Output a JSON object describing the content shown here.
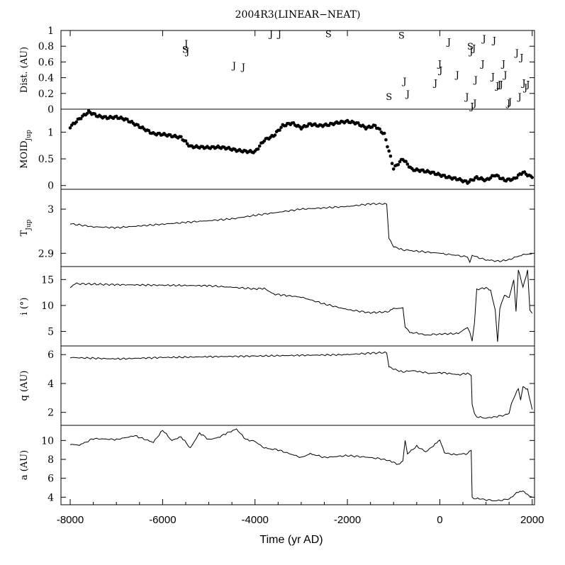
{
  "chart_data": {
    "type": "line",
    "title": "2004R3(LINEAR−NEAT)",
    "xlabel": "Time (yr AD)",
    "xlim": [
      -8200,
      2050
    ],
    "xticks": [
      -8000,
      -6000,
      -4000,
      -2000,
      0,
      2000
    ],
    "xtick_labels": [
      "-8000",
      "-6000",
      "-4000",
      "-2000",
      "0",
      "2000"
    ],
    "panels": [
      {
        "id": "dist",
        "ylabel": "Dist. (AU)",
        "ylim": [
          0,
          1
        ],
        "yticks": [
          0,
          0.2,
          0.4,
          0.6,
          0.8,
          1
        ],
        "ytick_labels": [
          "0",
          "0.2",
          "0.4",
          "0.6",
          "0.8",
          "1"
        ],
        "style": "letters",
        "series": [
          {
            "name": "encounters",
            "points": [
              {
                "x": -5490,
                "y": 0.84,
                "label": "J"
              },
              {
                "x": -5510,
                "y": 0.76,
                "label": "S"
              },
              {
                "x": -5460,
                "y": 0.74,
                "label": "J"
              },
              {
                "x": -4450,
                "y": 0.56,
                "label": "J"
              },
              {
                "x": -4250,
                "y": 0.54,
                "label": "J"
              },
              {
                "x": -3650,
                "y": 0.96,
                "label": "J"
              },
              {
                "x": -3470,
                "y": 0.96,
                "label": "J"
              },
              {
                "x": -2410,
                "y": 0.96,
                "label": "S"
              },
              {
                "x": -1100,
                "y": 0.16,
                "label": "S"
              },
              {
                "x": -830,
                "y": 0.94,
                "label": "S"
              },
              {
                "x": -760,
                "y": 0.36,
                "label": "J"
              },
              {
                "x": -690,
                "y": 0.2,
                "label": "J"
              },
              {
                "x": -90,
                "y": 0.34,
                "label": "J"
              },
              {
                "x": 0,
                "y": 0.58,
                "label": "J"
              },
              {
                "x": 20,
                "y": 0.5,
                "label": "J"
              },
              {
                "x": 200,
                "y": 0.86,
                "label": "J"
              },
              {
                "x": 380,
                "y": 0.44,
                "label": "J"
              },
              {
                "x": 590,
                "y": 0.16,
                "label": "J"
              },
              {
                "x": 660,
                "y": 0.8,
                "label": "S"
              },
              {
                "x": 680,
                "y": 0.74,
                "label": "J"
              },
              {
                "x": 700,
                "y": 0.04,
                "label": "J"
              },
              {
                "x": 740,
                "y": 0.78,
                "label": "J"
              },
              {
                "x": 760,
                "y": 0.08,
                "label": "J"
              },
              {
                "x": 780,
                "y": 0.38,
                "label": "J"
              },
              {
                "x": 930,
                "y": 0.58,
                "label": "J"
              },
              {
                "x": 960,
                "y": 0.9,
                "label": "J"
              },
              {
                "x": 1180,
                "y": 0.88,
                "label": "J"
              },
              {
                "x": 1150,
                "y": 0.42,
                "label": "J"
              },
              {
                "x": 1250,
                "y": 0.3,
                "label": "J"
              },
              {
                "x": 1290,
                "y": 0.32,
                "label": "J"
              },
              {
                "x": 1330,
                "y": 0.32,
                "label": "J"
              },
              {
                "x": 1380,
                "y": 0.58,
                "label": "J"
              },
              {
                "x": 1420,
                "y": 0.44,
                "label": "J"
              },
              {
                "x": 1490,
                "y": 0.08,
                "label": "J"
              },
              {
                "x": 1520,
                "y": 0.1,
                "label": "J"
              },
              {
                "x": 1670,
                "y": 0.72,
                "label": "J"
              },
              {
                "x": 1730,
                "y": 0.16,
                "label": "J"
              },
              {
                "x": 1770,
                "y": 0.66,
                "label": "J"
              },
              {
                "x": 1820,
                "y": 0.34,
                "label": "J"
              },
              {
                "x": 1860,
                "y": 0.28,
                "label": "J"
              },
              {
                "x": 1910,
                "y": 0.32,
                "label": "J"
              }
            ]
          }
        ]
      },
      {
        "id": "moid",
        "ylabel": "MOID",
        "ylabel_sub": "Jup",
        "ylim": [
          -0.07,
          1.43
        ],
        "yticks": [
          0,
          0.5,
          1
        ],
        "ytick_labels": [
          "0",
          "0.5",
          "1"
        ],
        "style": "dots",
        "series": [
          {
            "name": "MOID_Jup",
            "x": [
              -8000,
              -7800,
              -7600,
              -7400,
              -7200,
              -7000,
              -6800,
              -6600,
              -6400,
              -6200,
              -6000,
              -5800,
              -5600,
              -5400,
              -5200,
              -5000,
              -4800,
              -4600,
              -4400,
              -4200,
              -4000,
              -3800,
              -3600,
              -3400,
              -3200,
              -3000,
              -2800,
              -2600,
              -2400,
              -2200,
              -2000,
              -1800,
              -1600,
              -1400,
              -1200,
              -1000,
              -800,
              -600,
              -400,
              -200,
              0,
              200,
              400,
              600,
              800,
              1000,
              1200,
              1400,
              1600,
              1800,
              2000
            ],
            "y": [
              1.1,
              1.25,
              1.38,
              1.3,
              1.27,
              1.28,
              1.24,
              1.15,
              1.06,
              0.97,
              0.96,
              0.93,
              0.9,
              0.73,
              0.72,
              0.71,
              0.72,
              0.7,
              0.66,
              0.64,
              0.63,
              0.85,
              0.93,
              1.12,
              1.17,
              1.08,
              1.15,
              1.12,
              1.14,
              1.18,
              1.2,
              1.17,
              1.08,
              1.12,
              0.96,
              0.32,
              0.5,
              0.3,
              0.28,
              0.25,
              0.2,
              0.15,
              0.12,
              0.06,
              0.15,
              0.1,
              0.2,
              0.1,
              0.12,
              0.25,
              0.15
            ]
          }
        ]
      },
      {
        "id": "tjup",
        "ylabel": "T",
        "ylabel_sub": "Jup",
        "ylim": [
          2.87,
          3.045
        ],
        "yticks": [
          2.9,
          3
        ],
        "ytick_labels": [
          "2.9",
          "3"
        ],
        "style": "line",
        "series": [
          {
            "name": "T_Jup",
            "x": [
              -8000,
              -7500,
              -7000,
              -6500,
              -6000,
              -5500,
              -5000,
              -4500,
              -4000,
              -3500,
              -3000,
              -2500,
              -2000,
              -1500,
              -1150,
              -1100,
              -1000,
              -800,
              -500,
              0,
              300,
              600,
              650,
              700,
              1000,
              1300,
              1500,
              1800,
              2000
            ],
            "y": [
              2.967,
              2.96,
              2.958,
              2.962,
              2.966,
              2.97,
              2.974,
              2.978,
              2.986,
              2.993,
              3.0,
              3.003,
              3.006,
              3.012,
              3.012,
              2.935,
              2.915,
              2.908,
              2.905,
              2.9,
              2.896,
              2.892,
              2.88,
              2.895,
              2.885,
              2.882,
              2.886,
              2.897,
              2.899
            ]
          }
        ]
      },
      {
        "id": "incl",
        "ylabel": "i (°)",
        "ylim": [
          2.2,
          17.5
        ],
        "yticks": [
          5,
          10,
          15
        ],
        "ytick_labels": [
          "5",
          "10",
          "15"
        ],
        "style": "line",
        "series": [
          {
            "name": "i",
            "x": [
              -8000,
              -7900,
              -7000,
              -6000,
              -5000,
              -4500,
              -4000,
              -3800,
              -3600,
              -3000,
              -2500,
              -2000,
              -1500,
              -1100,
              -1000,
              -800,
              -750,
              -650,
              -500,
              -300,
              0,
              400,
              600,
              650,
              700,
              750,
              800,
              1000,
              1100,
              1200,
              1250,
              1300,
              1400,
              1500,
              1600,
              1650,
              1700,
              1800,
              1900,
              1950,
              2000
            ],
            "y": [
              13.5,
              14.2,
              14.0,
              13.9,
              13.8,
              13.5,
              13.2,
              13.3,
              12.2,
              11.6,
              10.3,
              9.2,
              8.6,
              8.8,
              9.4,
              9.5,
              5.8,
              4.8,
              4.7,
              4.3,
              4.5,
              4.6,
              5.8,
              4.8,
              3.0,
              6.5,
              13.1,
              13.4,
              12.8,
              9.0,
              3.0,
              9.5,
              12.0,
              11.5,
              15.0,
              9.0,
              17.0,
              13.6,
              16.8,
              9.0,
              8.5
            ]
          }
        ]
      },
      {
        "id": "q",
        "ylabel": "q (AU)",
        "ylim": [
          1.1,
          6.6
        ],
        "yticks": [
          2,
          4,
          6
        ],
        "ytick_labels": [
          "2",
          "4",
          "6"
        ],
        "style": "line",
        "series": [
          {
            "name": "q",
            "x": [
              -8000,
              -7000,
              -6000,
              -5000,
              -4000,
              -3000,
              -2000,
              -1500,
              -1150,
              -1100,
              -1000,
              -800,
              -600,
              -400,
              -200,
              0,
              200,
              400,
              600,
              680,
              700,
              750,
              800,
              1000,
              1200,
              1400,
              1500,
              1550,
              1600,
              1700,
              1750,
              1800,
              1900,
              2000
            ],
            "y": [
              5.8,
              5.7,
              5.8,
              5.85,
              5.9,
              5.95,
              6.0,
              6.1,
              6.15,
              5.2,
              5.0,
              4.8,
              4.9,
              4.8,
              4.7,
              4.75,
              4.7,
              4.6,
              4.7,
              4.55,
              2.5,
              1.9,
              1.7,
              1.6,
              1.7,
              1.8,
              1.9,
              2.6,
              3.0,
              3.7,
              2.9,
              3.8,
              3.6,
              2.2
            ]
          }
        ]
      },
      {
        "id": "a",
        "ylabel": "a (AU)",
        "ylim": [
          3.2,
          11.6
        ],
        "yticks": [
          4,
          6,
          8,
          10
        ],
        "ytick_labels": [
          "4",
          "6",
          "8",
          "10"
        ],
        "style": "line",
        "series": [
          {
            "name": "a",
            "x": [
              -8000,
              -7800,
              -7500,
              -7000,
              -6600,
              -6200,
              -6000,
              -5800,
              -5600,
              -5400,
              -5200,
              -5000,
              -4800,
              -4600,
              -4400,
              -4200,
              -4000,
              -3800,
              -3500,
              -3000,
              -2800,
              -2500,
              -2000,
              -1500,
              -1200,
              -1000,
              -900,
              -800,
              -750,
              -700,
              -500,
              -300,
              -100,
              0,
              100,
              300,
              600,
              680,
              700,
              900,
              1200,
              1500,
              1700,
              1800,
              1900,
              2000
            ],
            "y": [
              9.6,
              9.5,
              10.2,
              10.1,
              10.5,
              9.8,
              11.1,
              10.0,
              10.4,
              9.2,
              10.8,
              10.1,
              10.3,
              10.8,
              11.2,
              10.1,
              9.9,
              9.2,
              9.0,
              8.2,
              8.6,
              8.2,
              8.4,
              8.2,
              8.0,
              7.7,
              7.4,
              7.8,
              10.0,
              8.6,
              9.4,
              8.8,
              9.6,
              10.0,
              8.7,
              8.5,
              8.6,
              9.0,
              3.9,
              3.8,
              3.6,
              3.8,
              4.6,
              4.7,
              4.3,
              4.0
            ]
          }
        ]
      }
    ]
  }
}
